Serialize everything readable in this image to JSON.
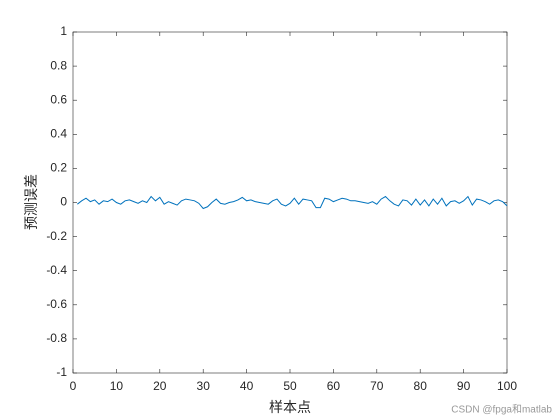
{
  "chart_data": {
    "type": "line",
    "xlabel": "样本点",
    "ylabel": "预测误差",
    "watermark": "CSDN @fpga和matlab",
    "xlim": [
      0,
      100
    ],
    "xticks": [
      0,
      10,
      20,
      30,
      40,
      50,
      60,
      70,
      80,
      90,
      100
    ],
    "ylim": [
      -1,
      1
    ],
    "yticks": [
      -1,
      -0.8,
      -0.6,
      -0.4,
      -0.2,
      0,
      0.2,
      0.4,
      0.6,
      0.8,
      1
    ],
    "x": [
      1,
      2,
      3,
      4,
      5,
      6,
      7,
      8,
      9,
      10,
      11,
      12,
      13,
      14,
      15,
      16,
      17,
      18,
      19,
      20,
      21,
      22,
      23,
      24,
      25,
      26,
      27,
      28,
      29,
      30,
      31,
      32,
      33,
      34,
      35,
      36,
      37,
      38,
      39,
      40,
      41,
      42,
      43,
      44,
      45,
      46,
      47,
      48,
      49,
      50,
      51,
      52,
      53,
      54,
      55,
      56,
      57,
      58,
      59,
      60,
      61,
      62,
      63,
      64,
      65,
      66,
      67,
      68,
      69,
      70,
      71,
      72,
      73,
      74,
      75,
      76,
      77,
      78,
      79,
      80,
      81,
      82,
      83,
      84,
      85,
      86,
      87,
      88,
      89,
      90,
      91,
      92,
      93,
      94,
      95,
      96,
      97,
      98,
      99,
      100
    ],
    "series": [
      {
        "color": "#0072bd",
        "values": [
          -0.01,
          0.01,
          0.025,
          0.005,
          0.015,
          -0.01,
          0.01,
          0.005,
          0.02,
          0.0,
          -0.01,
          0.01,
          0.015,
          0.005,
          -0.005,
          0.01,
          0.0,
          0.035,
          0.01,
          0.03,
          -0.01,
          0.005,
          -0.005,
          -0.015,
          0.01,
          0.02,
          0.015,
          0.01,
          -0.005,
          -0.035,
          -0.025,
          0.0,
          0.02,
          -0.005,
          -0.01,
          0.0,
          0.005,
          0.015,
          0.03,
          0.01,
          0.015,
          0.005,
          0.0,
          -0.005,
          -0.01,
          0.01,
          0.02,
          -0.01,
          -0.02,
          -0.005,
          0.025,
          -0.01,
          0.02,
          0.015,
          0.01,
          -0.03,
          -0.03,
          0.025,
          0.02,
          0.005,
          0.015,
          0.025,
          0.02,
          0.01,
          0.01,
          0.005,
          0.0,
          -0.005,
          0.005,
          -0.01,
          0.02,
          0.035,
          0.01,
          -0.01,
          -0.02,
          0.015,
          0.01,
          -0.015,
          0.02,
          -0.015,
          0.015,
          -0.02,
          0.02,
          -0.01,
          0.025,
          -0.02,
          0.005,
          0.01,
          -0.005,
          0.01,
          0.035,
          -0.015,
          0.02,
          0.015,
          0.005,
          -0.01,
          0.01,
          0.015,
          0.005,
          -0.02
        ]
      }
    ]
  }
}
